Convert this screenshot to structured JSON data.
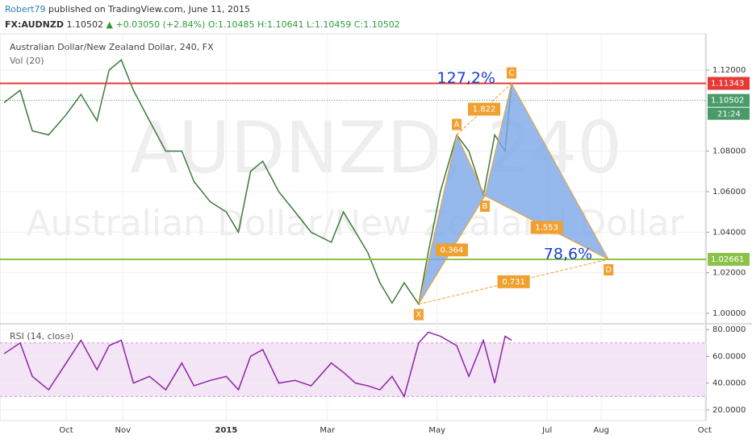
{
  "header": {
    "author": "Robert79",
    "published": "published on TradingView.com, June 11, 2015",
    "symbol": "FX:AUDNZD",
    "price": "1.10502",
    "change": "+0.03050 (+2.84%)",
    "ohlc": "O:1.10485 H:1.10641 L:1.10459 C:1.10502"
  },
  "chart_data": [
    {
      "type": "line",
      "title": "Australian Dollar/New Zealand Dollar, 240, FX",
      "indicator": "Vol (20)",
      "watermark": [
        "AUDNZD, 240",
        "Australian Dollar/New Zealand Dollar"
      ],
      "x": [
        1.6,
        7.8,
        12.5,
        18.8,
        25.6,
        31.3,
        37.5,
        42.2,
        46.9,
        51.6,
        57.8,
        64.1,
        70.3,
        75,
        81.3,
        87.5,
        92.2,
        96.9,
        101.6,
        107.8,
        114.1,
        120.3,
        128.1,
        132.8,
        137.5,
        142.2,
        146.9,
        151.6,
        156.3,
        161.9,
        165.6,
        170.3,
        176.6,
        181.3,
        186.9,
        191.3,
        195.3,
        197.8
      ],
      "series": [
        {
          "name": "AUDNZD",
          "color": "#3d7a3d",
          "values": [
            1.104,
            1.11,
            1.09,
            1.088,
            1.098,
            1.108,
            1.095,
            1.12,
            1.125,
            1.11,
            1.095,
            1.08,
            1.08,
            1.065,
            1.055,
            1.05,
            1.04,
            1.07,
            1.075,
            1.06,
            1.05,
            1.04,
            1.035,
            1.05,
            1.04,
            1.03,
            1.015,
            1.005,
            1.015,
            1.0045,
            1.03,
            1.06,
            1.088,
            1.08,
            1.058,
            1.088,
            1.08,
            1.1134
          ]
        }
      ],
      "xlim": [
        0,
        273
      ],
      "xticks": [
        {
          "value": 25.6,
          "label": "Oct"
        },
        {
          "value": 47.5,
          "label": "Nov"
        },
        {
          "value": 87.5,
          "label": "2015"
        },
        {
          "value": 126.6,
          "label": "Mar"
        },
        {
          "value": 169,
          "label": "May"
        },
        {
          "value": 211.6,
          "label": "Jul"
        },
        {
          "value": 232.5,
          "label": "Aug"
        },
        {
          "value": 272.5,
          "label": "Oct"
        }
      ],
      "ylim": [
        0.9956,
        1.1347
      ],
      "yticks": [
        {
          "value": 1,
          "label": "1.00000"
        },
        {
          "value": 1.02,
          "label": "1.02000"
        },
        {
          "value": 1.04,
          "label": "1.04000"
        },
        {
          "value": 1.06,
          "label": "1.06000"
        },
        {
          "value": 1.08,
          "label": "1.08000"
        },
        {
          "value": 1.12,
          "label": "1.12000"
        }
      ],
      "levels": [
        {
          "value": 1.11343,
          "color": "#e53935"
        },
        {
          "value": 1.10502,
          "color": "#4a9a6a",
          "countdown": "21:24"
        },
        {
          "value": 1.02661,
          "color": "#8bc34a"
        }
      ],
      "pattern": {
        "color": "#f0a030",
        "fill": "#7aa7e8",
        "points": [
          {
            "name": "X",
            "x": 161.9,
            "y": 1.0045
          },
          {
            "name": "A",
            "x": 176.6,
            "y": 1.088
          },
          {
            "name": "B",
            "x": 187.5,
            "y": 1.058
          },
          {
            "name": "C",
            "x": 197.8,
            "y": 1.1134
          },
          {
            "name": "D",
            "x": 235.3,
            "y": 1.0266
          }
        ],
        "ratios": [
          {
            "from": 0,
            "to": 2,
            "value": 0.364
          },
          {
            "from": 1,
            "to": 3,
            "value": 1.822
          },
          {
            "from": 2,
            "to": 4,
            "value": 1.553
          },
          {
            "from": 0,
            "to": 4,
            "value": 0.731
          }
        ],
        "percent_labels": [
          {
            "point": 3,
            "label": "127,2%"
          },
          {
            "point": 4,
            "label": "78,6%"
          }
        ]
      }
    },
    {
      "type": "line",
      "title": "RSI (14, close)",
      "x": [
        1.6,
        7.8,
        12.5,
        18.8,
        25.6,
        31.3,
        37.5,
        42.2,
        46.9,
        51.6,
        57.8,
        64.1,
        70.3,
        75,
        81.3,
        87.5,
        92.2,
        96.9,
        101.6,
        107.8,
        114.1,
        120.3,
        128.1,
        132.8,
        137.5,
        142.2,
        146.9,
        151.6,
        156.3,
        161.9,
        165.6,
        170.3,
        176.6,
        181.3,
        186.9,
        191.3,
        195.3,
        197.8
      ],
      "series": [
        {
          "name": "RSI",
          "color": "#8e24aa",
          "values": [
            62,
            70,
            45,
            35,
            55,
            72,
            50,
            68,
            72,
            40,
            45,
            35,
            55,
            38,
            42,
            45,
            35,
            60,
            65,
            40,
            42,
            38,
            55,
            48,
            40,
            38,
            35,
            45,
            30,
            70,
            78,
            75,
            68,
            45,
            72,
            40,
            75,
            72
          ]
        }
      ],
      "xlim": [
        0,
        273
      ],
      "ylim": [
        13.3,
        83.7
      ],
      "bands": [
        30,
        70
      ],
      "yticks": [
        {
          "value": 20,
          "label": "20.0000"
        },
        {
          "value": 40,
          "label": "40.0000"
        },
        {
          "value": 60,
          "label": "60.0000"
        },
        {
          "value": 80,
          "label": "80.0000"
        }
      ]
    }
  ]
}
